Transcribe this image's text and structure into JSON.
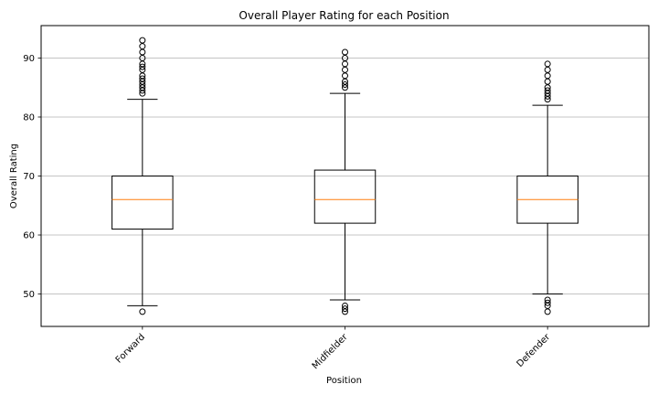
{
  "chart_data": {
    "type": "box",
    "title": "Overall Player Rating for each Position",
    "xlabel": "Position",
    "ylabel": "Overall Rating",
    "ylim": [
      44.5,
      95.5
    ],
    "yticks": [
      50,
      60,
      70,
      80,
      90
    ],
    "grid": "y",
    "categories": [
      "Forward",
      "Midfielder",
      "Defender"
    ],
    "boxes": [
      {
        "name": "Forward",
        "whisker_low": 48,
        "q1": 61,
        "median": 66,
        "q3": 70,
        "whisker_high": 83,
        "outliers": [
          47,
          84,
          84.5,
          85,
          85.5,
          86,
          86.5,
          87,
          88,
          88.5,
          89,
          90,
          91,
          92,
          93
        ]
      },
      {
        "name": "Midfielder",
        "whisker_low": 49,
        "q1": 62,
        "median": 66,
        "q3": 71,
        "whisker_high": 84,
        "outliers": [
          47,
          47.5,
          48,
          85,
          85.5,
          86,
          87,
          88,
          89,
          90,
          91
        ]
      },
      {
        "name": "Defender",
        "whisker_low": 50,
        "q1": 62,
        "median": 66,
        "q3": 70,
        "whisker_high": 82,
        "outliers": [
          47,
          48,
          48.5,
          49,
          83,
          83.5,
          84,
          84.5,
          85,
          86,
          87,
          88,
          89
        ]
      }
    ],
    "colors": {
      "median": "#ff7f0e",
      "box": "#000000",
      "grid": "#b0b0b0"
    }
  }
}
